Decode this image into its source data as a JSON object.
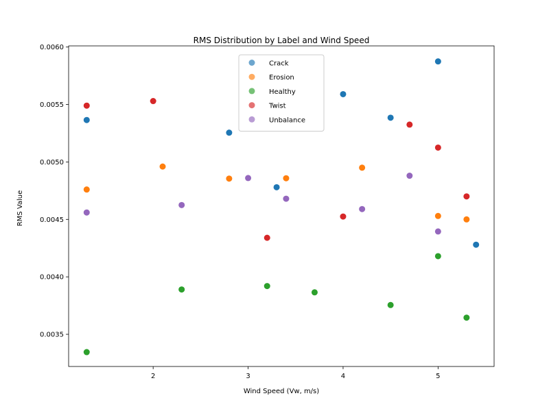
{
  "chart_data": {
    "type": "scatter",
    "title": "RMS Distribution by Label and Wind Speed",
    "xlabel": "Wind Speed (Vw, m/s)",
    "ylabel": "RMS Value",
    "xlim": [
      1.11,
      5.59
    ],
    "ylim": [
      0.00322,
      0.00601
    ],
    "xticks": [
      2,
      3,
      4,
      5
    ],
    "yticks": [
      0.0035,
      0.004,
      0.0045,
      0.005,
      0.0055,
      0.006
    ],
    "ytick_labels": [
      "0.0035",
      "0.0040",
      "0.0045",
      "0.0050",
      "0.0055",
      "0.0060"
    ],
    "grid": false,
    "legend_position": "top-center",
    "series": [
      {
        "name": "Crack",
        "color": "#1f77b4",
        "points": [
          [
            1.3,
            0.005365
          ],
          [
            2.8,
            0.005255
          ],
          [
            3.3,
            0.00478
          ],
          [
            4.0,
            0.00559
          ],
          [
            4.5,
            0.005385
          ],
          [
            5.0,
            0.005875
          ],
          [
            5.4,
            0.00428
          ]
        ]
      },
      {
        "name": "Erosion",
        "color": "#ff7f0e",
        "points": [
          [
            1.3,
            0.00476
          ],
          [
            2.1,
            0.00496
          ],
          [
            2.8,
            0.004855
          ],
          [
            3.4,
            0.004858
          ],
          [
            4.2,
            0.00495
          ],
          [
            5.0,
            0.00453
          ],
          [
            5.3,
            0.0045
          ]
        ]
      },
      {
        "name": "Healthy",
        "color": "#2ca02c",
        "points": [
          [
            1.3,
            0.003345
          ],
          [
            2.3,
            0.00389
          ],
          [
            3.2,
            0.00392
          ],
          [
            3.7,
            0.003865
          ],
          [
            4.5,
            0.003755
          ],
          [
            5.0,
            0.00418
          ],
          [
            5.3,
            0.003645
          ]
        ]
      },
      {
        "name": "Twist",
        "color": "#d62728",
        "points": [
          [
            1.3,
            0.00549
          ],
          [
            2.0,
            0.00553
          ],
          [
            3.2,
            0.00434
          ],
          [
            4.0,
            0.004525
          ],
          [
            4.7,
            0.005325
          ],
          [
            5.0,
            0.005125
          ],
          [
            5.3,
            0.0047
          ]
        ]
      },
      {
        "name": "Unbalance",
        "color": "#9467bd",
        "points": [
          [
            1.3,
            0.00456
          ],
          [
            2.3,
            0.004625
          ],
          [
            3.0,
            0.00486
          ],
          [
            3.4,
            0.00468
          ],
          [
            4.2,
            0.00459
          ],
          [
            4.7,
            0.00488
          ],
          [
            5.0,
            0.004395
          ]
        ]
      }
    ]
  }
}
